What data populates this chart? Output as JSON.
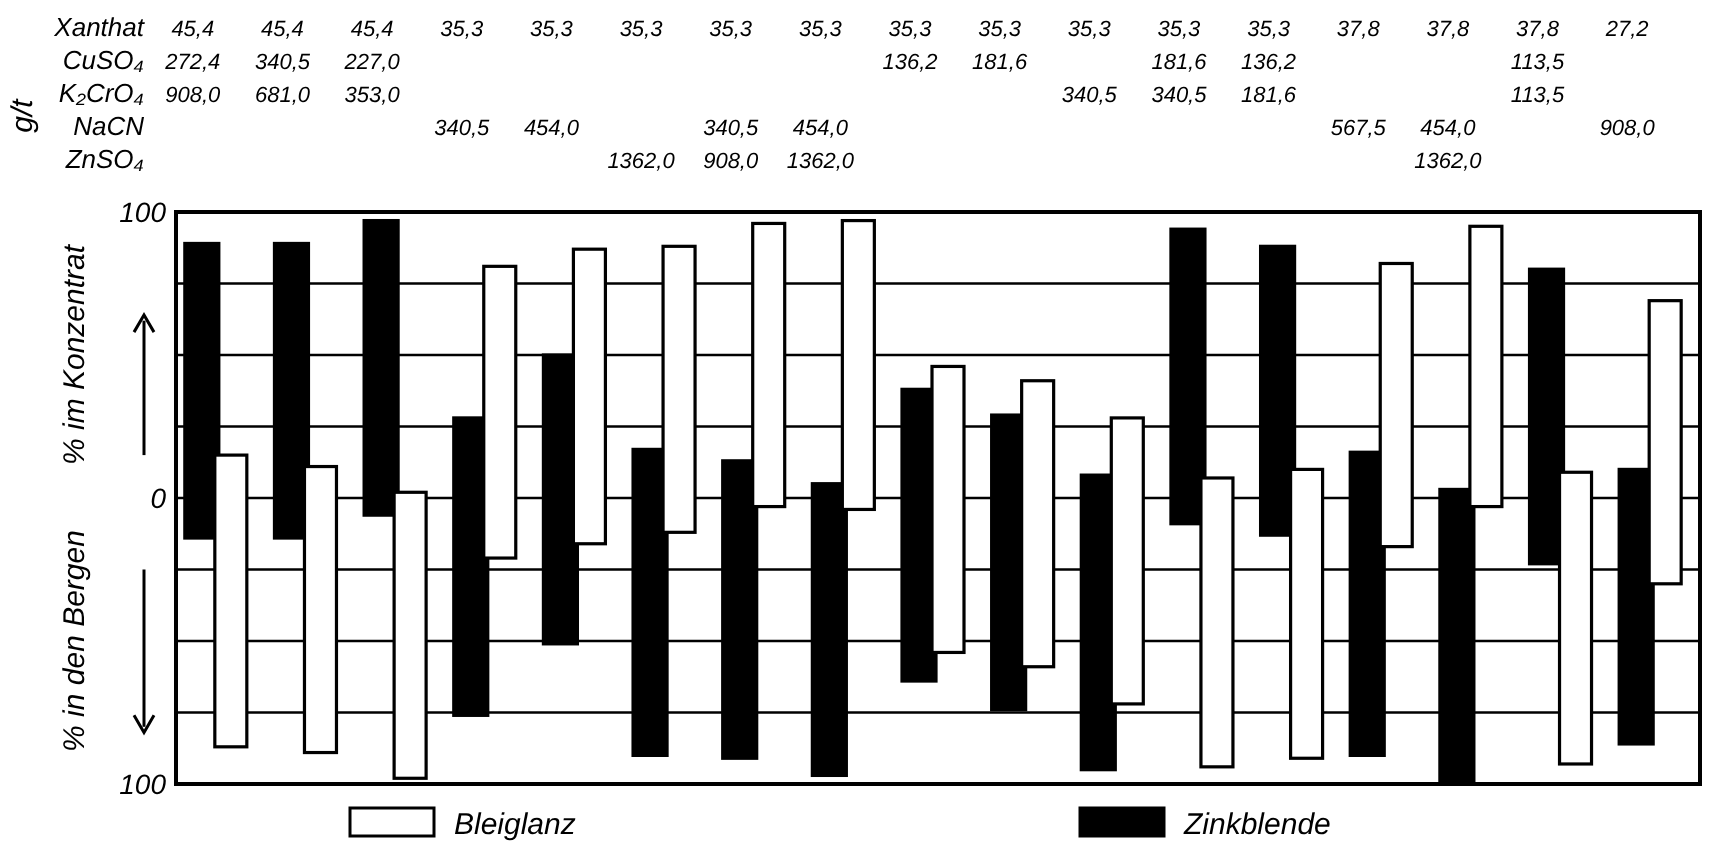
{
  "chart_data": [
    {
      "type": "other",
      "ylabel": "g/t",
      "y_categories": [
        "Xanthat",
        "CuSO₄",
        "K₂CrO₄",
        "NaCN",
        "ZnSO₄"
      ],
      "cell_labels": [
        [
          "45,4",
          "45,4",
          "45,4",
          "35,3",
          "35,3",
          "35,3",
          "35,3",
          "35,3",
          "35,3",
          "35,3",
          "35,3",
          "35,3",
          "35,3",
          "37,8",
          "37,8",
          "37,8",
          "27,2"
        ],
        [
          "272,4",
          "340,5",
          "227,0",
          null,
          null,
          null,
          null,
          null,
          "136,2",
          "181,6",
          null,
          "181,6",
          "136,2",
          null,
          null,
          "113,5",
          null
        ],
        [
          "908,0",
          "681,0",
          "353,0",
          null,
          null,
          null,
          null,
          null,
          null,
          null,
          "340,5",
          "340,5",
          "181,6",
          null,
          null,
          "113,5",
          null
        ],
        [
          null,
          null,
          null,
          "340,5",
          "454,0",
          null,
          "340,5",
          "454,0",
          null,
          null,
          null,
          null,
          null,
          "567,5",
          "454,0",
          null,
          "908,0"
        ],
        [
          null,
          null,
          null,
          null,
          null,
          "1362,0",
          "908,0",
          "1362,0",
          null,
          null,
          null,
          null,
          null,
          null,
          "1362,0",
          null,
          null
        ]
      ]
    },
    {
      "type": "bar",
      "categories": [
        null,
        null,
        null,
        null,
        null,
        null,
        null,
        null,
        null,
        null,
        null,
        null,
        null,
        null,
        null,
        null,
        null
      ],
      "ylabel": "% im Konzentrat",
      "annotations": [
        "% in den Bergen"
      ],
      "ylim": [
        -100,
        100
      ],
      "yticks": [
        {
          "value": -100,
          "label": "100"
        },
        {
          "value": -75,
          "label": null
        },
        {
          "value": -50,
          "label": null
        },
        {
          "value": -25,
          "label": null
        },
        0,
        {
          "value": 25,
          "label": null
        },
        {
          "value": 50,
          "label": null
        },
        {
          "value": 75,
          "label": null
        },
        100
      ],
      "grid": "y",
      "legend": "bottom",
      "series": [
        {
          "name": "Zinkblende",
          "color": "#000000",
          "base": [
            -14,
            -14,
            -6,
            -76,
            -51,
            -90,
            -91,
            -97,
            -64,
            -74,
            -95,
            -9,
            -13,
            -90,
            -99,
            -23,
            -86
          ],
          "values": [
            103,
            103,
            103,
            104,
            101,
            107,
            104,
            102,
            102,
            103,
            103,
            103,
            101,
            106,
            102,
            103,
            96
          ]
        },
        {
          "name": "Bleiglanz",
          "color": "#ffffff",
          "base": [
            -87,
            -89,
            -98,
            -21,
            -16,
            -12,
            -3,
            -4,
            -54,
            -59,
            -72,
            -94,
            -91,
            -17,
            -3,
            -93,
            -30
          ],
          "values": [
            102,
            100,
            100,
            102,
            103,
            100,
            99,
            101,
            100,
            100,
            100,
            101,
            101,
            99,
            98,
            102,
            99
          ]
        }
      ]
    }
  ]
}
